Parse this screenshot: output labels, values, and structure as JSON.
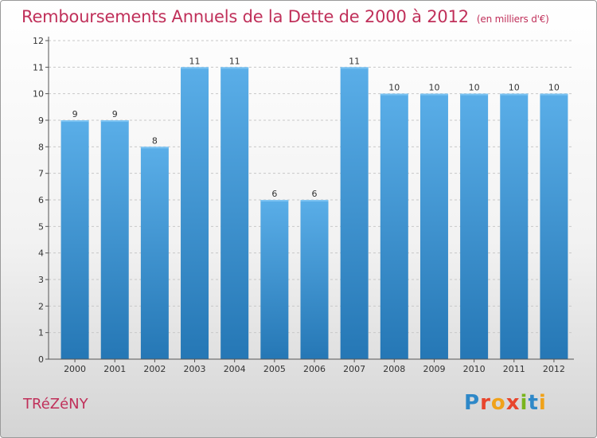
{
  "header": {
    "title": "Remboursements Annuels de la Dette de 2000 à 2012",
    "unit": "(en milliers d'€)"
  },
  "footer": {
    "town": "TRéZéNY",
    "logo": [
      "P",
      "r",
      "o",
      "x",
      "i",
      "t",
      "i"
    ]
  },
  "colors": {
    "bar_top": "#5aaee8",
    "bar_bottom": "#2577b5",
    "title": "#c0305a"
  },
  "chart_data": {
    "type": "bar",
    "title": "Remboursements Annuels de la Dette de 2000 à 2012",
    "subtitle": "(en milliers d'€)",
    "categories": [
      "2000",
      "2001",
      "2002",
      "2003",
      "2004",
      "2005",
      "2006",
      "2007",
      "2008",
      "2009",
      "2010",
      "2011",
      "2012"
    ],
    "values": [
      9,
      9,
      8,
      11,
      11,
      6,
      6,
      11,
      10,
      10,
      10,
      10,
      10
    ],
    "data_labels": [
      "9",
      "9",
      "8",
      "11",
      "11",
      "6",
      "6",
      "11",
      "10",
      "10",
      "10",
      "10",
      "10"
    ],
    "y_ticks": [
      0,
      1,
      2,
      3,
      4,
      5,
      6,
      7,
      8,
      9,
      10,
      11,
      12
    ],
    "ylim": [
      0,
      12
    ],
    "xlabel": "",
    "ylabel": "",
    "grid": true,
    "legend": "none"
  }
}
